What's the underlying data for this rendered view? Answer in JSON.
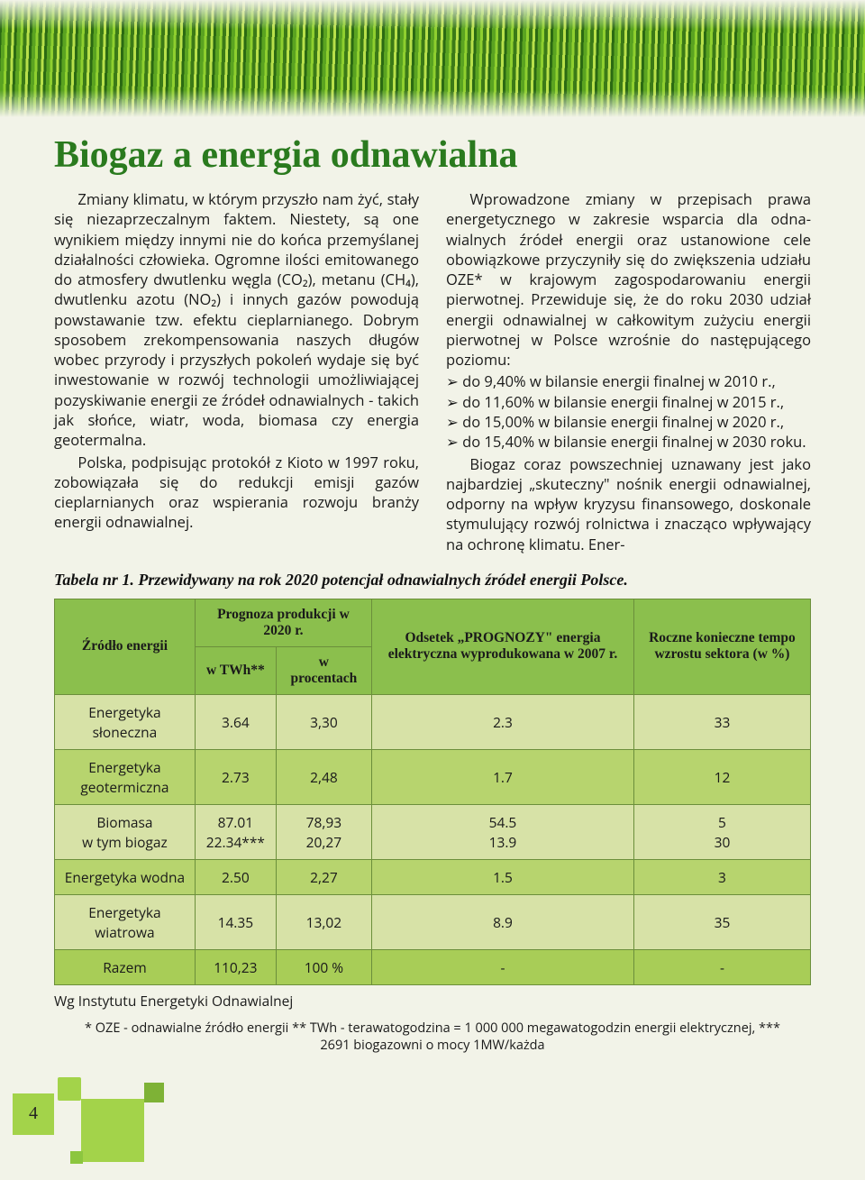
{
  "page": {
    "number": "4",
    "background_color": "#f2f3e8",
    "accent_color": "#a3d34a"
  },
  "heading": "Biogaz a energia odnawialna",
  "heading_style": {
    "color": "#2a7a1e",
    "fontsize_pt": 32,
    "font_family": "Palatino"
  },
  "body": {
    "p1": "Zmiany klimatu, w którym przyszło nam żyć, stały się niezaprzeczalnym faktem. Niestety, są one wynikiem między innymi nie do końca przemyślanej działalności człowieka. Ogromne ilości emitowanego do atmosfery dwutlenku węgla (CO₂), metanu (CH₄), dwutlenku azotu (NO₂) i innych gazów powodują powstawanie tzw. efektu cieplarnianego. Dobrym sposobem zrekompensowania naszych długów wobec przyrody i przyszłych pokoleń wydaje się być inwestowanie w rozwój technologii umożliwia­jącej pozyskiwanie energii ze źródeł odnawial­nych - takich jak słońce, wiatr, woda, biomasa czy energia geotermalna.",
    "p2": "Polska, podpisując protokół z Kioto w 1997 roku, zobowiązała się do redukcji emisji gazów cieplarnianych oraz wspierania rozwoju branży energii odnawialnej.",
    "p3": "Wprowadzone zmiany w przepisach prawa energetycznego w zakresie wsparcia dla odna­wialnych źródeł energii oraz ustanowione cele obowiązkowe przyczyniły się do zwiększenia udziału OZE* w krajowym zagospodarowaniu energii pierwotnej. Przewiduje się, że do roku 2030 udział energii odnawialnej w całkowitym zużyciu energii pierwotnej w Polsce wzrośnie do następującego poziomu:",
    "bullets": [
      "do 9,40% w bilansie energii finalnej w 2010 r.,",
      "do 11,60% w bilansie energii finalnej w 2015 r.,",
      "do 15,00% w bilansie energii finalnej w 2020 r.,",
      "do 15,40% w bilansie energii finalnej w 2030 roku."
    ],
    "p4": "Biogaz coraz powszechniej uznawany jest jako najbardziej „skuteczny\" nośnik energii odnawialnej, odporny na wpływ kryzysu finanso­wego, doskonale stymulujący rozwój rolnictwa i znacząco wpływający na ochronę klimatu. Ener-"
  },
  "table": {
    "caption": "Tabela nr 1. Przewidywany na rok 2020 potencjał odnawialnych źródeł energii Polsce.",
    "header_bg": "#8bbf4d",
    "row_light_bg": "#d7e2a7",
    "row_mid_bg": "#b7d46e",
    "row_total_bg": "#a8cd57",
    "border_color": "#6b8f3b",
    "columns": {
      "source": "Źródło energii",
      "forecast_group": "Prognoza produkcji w 2020 r.",
      "twh": "w TWh**",
      "percent": "w procentach",
      "share": "Odsetek „PROGNOZY\" energia elektryczna wyprodukowana w 2007 r.",
      "growth": "Roczne konieczne tempo wzrostu sektora (w %)"
    },
    "rows": [
      {
        "src": "Energetyka słoneczna",
        "twh": "3.64",
        "pct": "3,30",
        "share": "2.3",
        "growth": "33",
        "tone": "light"
      },
      {
        "src": "Energetyka geotermiczna",
        "twh": "2.73",
        "pct": "2,48",
        "share": "1.7",
        "growth": "12",
        "tone": "mid"
      },
      {
        "src": "Biomasa\nw tym biogaz",
        "twh": "87.01\n22.34***",
        "pct": "78,93\n20,27",
        "share": "54.5\n13.9",
        "growth": "5\n30",
        "tone": "light"
      },
      {
        "src": "Energetyka wodna",
        "twh": "2.50",
        "pct": "2,27",
        "share": "1.5",
        "growth": "3",
        "tone": "mid"
      },
      {
        "src": "Energetyka wiatrowa",
        "twh": "14.35",
        "pct": "13,02",
        "share": "8.9",
        "growth": "35",
        "tone": "light"
      },
      {
        "src": "Razem",
        "twh": "110,23",
        "pct": "100 %",
        "share": "-",
        "growth": "-",
        "tone": "total"
      }
    ],
    "note": "Wg Instytutu Energetyki Odnawialnej"
  },
  "footnote": "* OZE - odnawialne źródło energii ** TWh - terawatogodzina = 1 000 000 megawatogodzin energii elektrycznej, *** 2691 biogazowni o mocy 1MW/każda"
}
